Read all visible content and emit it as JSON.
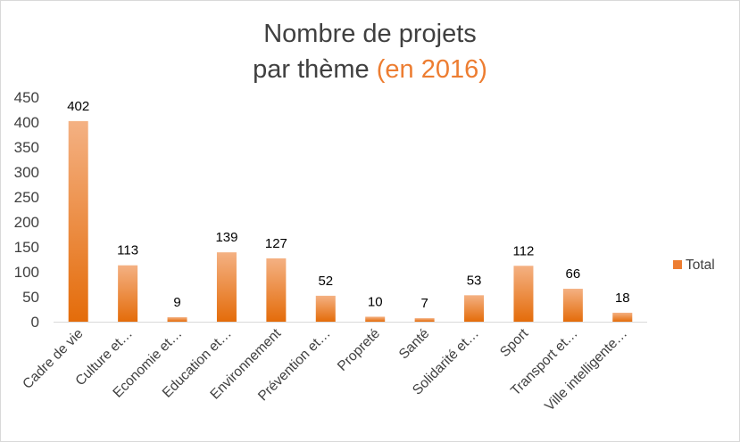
{
  "title": {
    "line1": "Nombre de projets",
    "line2": "par thème",
    "highlight": "(en 2016)"
  },
  "colors": {
    "bar_light": "#f4b183",
    "bar_dark": "#e46c0a",
    "accent": "#ed7d31",
    "text": "#404040",
    "grid": "#d9d9d9"
  },
  "chart_data": {
    "type": "bar",
    "categories": [
      "Cadre de vie",
      "Culture et…",
      "Economie et…",
      "Education et…",
      "Environnement",
      "Prévention et…",
      "Propreté",
      "Santé",
      "Solidarité et…",
      "Sport",
      "Transport et…",
      "Ville intelligente…"
    ],
    "series": [
      {
        "name": "Total",
        "values": [
          402,
          113,
          9,
          139,
          127,
          52,
          10,
          7,
          53,
          112,
          66,
          18
        ]
      }
    ],
    "ylim": [
      0,
      450
    ],
    "yticks": [
      0,
      50,
      100,
      150,
      200,
      250,
      300,
      350,
      400,
      450
    ],
    "xlabel": "",
    "ylabel": "",
    "grid": false,
    "legend": "right",
    "data_labels": true
  }
}
